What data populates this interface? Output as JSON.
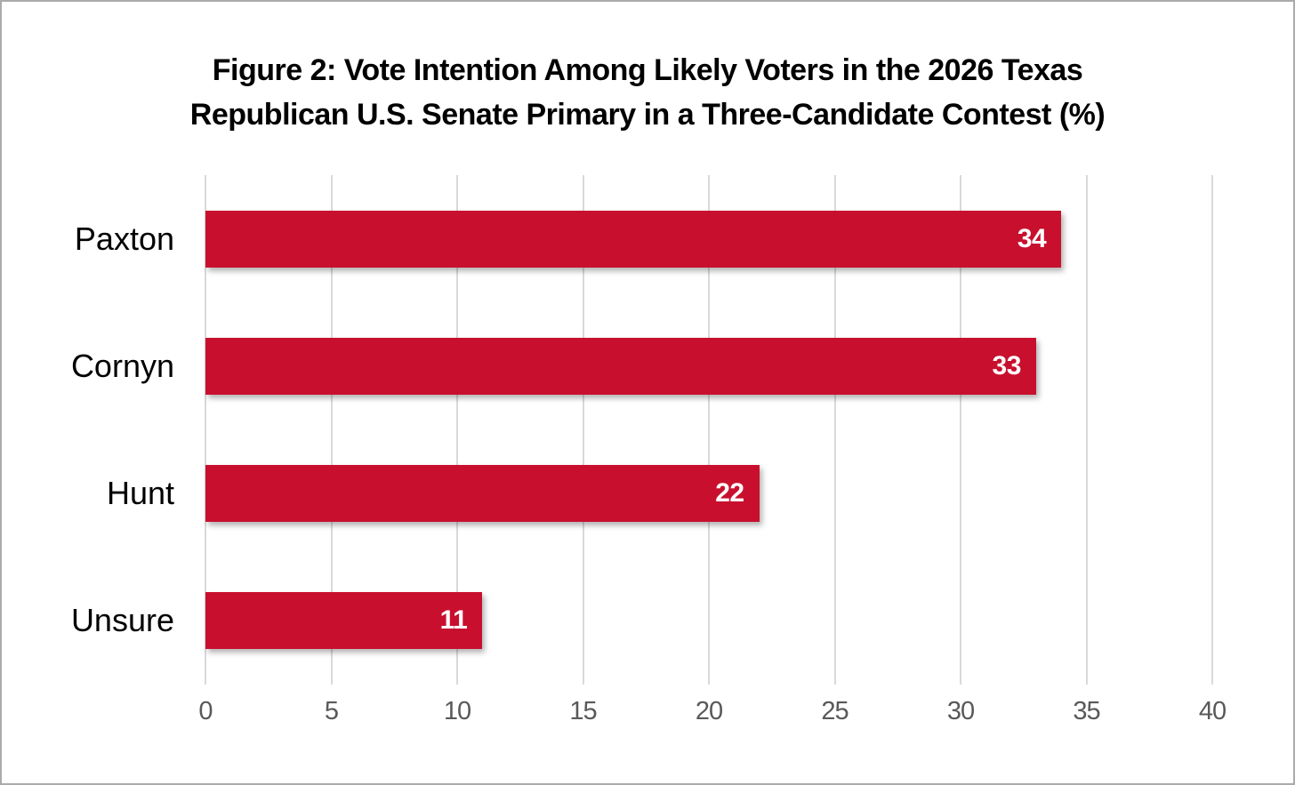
{
  "figure": {
    "background_color": "#FFFFFF",
    "border_color": "#ABABAB"
  },
  "chart_data": {
    "type": "bar",
    "orientation": "horizontal",
    "title": "Figure 2: Vote Intention Among Likely Voters in the 2026 Texas Republican U.S. Senate Primary in a Three-Candidate Contest (%)",
    "title_lines": [
      "Figure 2: Vote Intention Among Likely Voters in the 2026 Texas",
      "Republican U.S. Senate Primary in a Three-Candidate Contest (%)"
    ],
    "categories": [
      "Paxton",
      "Cornyn",
      "Hunt",
      "Unsure"
    ],
    "values": [
      34,
      33,
      22,
      11
    ],
    "value_labels": [
      "34",
      "33",
      "22",
      "11"
    ],
    "xlabel": "",
    "ylabel": "",
    "xlim": [
      0,
      40
    ],
    "x_ticks": [
      0,
      5,
      10,
      15,
      20,
      25,
      30,
      35,
      40
    ],
    "grid": "vertical-gridlines-on",
    "legend_position": "none",
    "colors": {
      "bar": "#C8102E",
      "bar_value_text": "#FFFFFF",
      "gridline": "#D9D9D9",
      "tick_label": "#595959",
      "title_text": "#000000",
      "category_label_text": "#000000"
    }
  }
}
